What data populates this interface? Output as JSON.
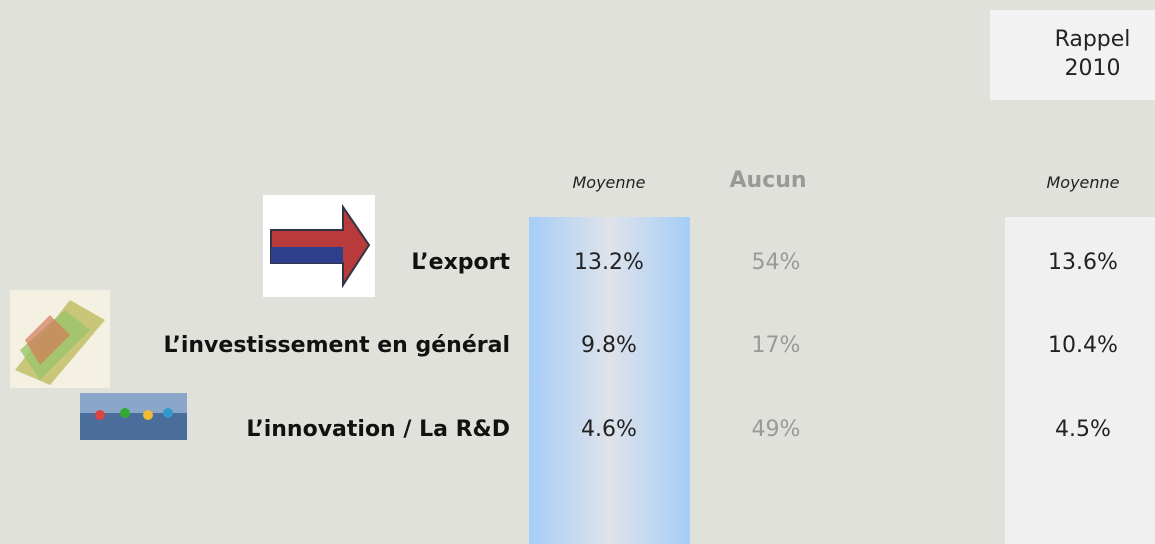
{
  "header": {
    "rappel": "Rappel 2010"
  },
  "columns": {
    "moyenne": "Moyenne",
    "aucun": "Aucun",
    "rappel_moyenne": "Moyenne"
  },
  "rows": [
    {
      "label": "L’export",
      "moyenne": "13.2%",
      "aucun": "54%",
      "rappel": "13.6%"
    },
    {
      "label": "L’investissement en général",
      "moyenne": "9.8%",
      "aucun": "17%",
      "rappel": "10.4%"
    },
    {
      "label": "L’innovation / La R&D",
      "moyenne": "4.6%",
      "aucun": "49%",
      "rappel": "4.5%"
    }
  ]
}
